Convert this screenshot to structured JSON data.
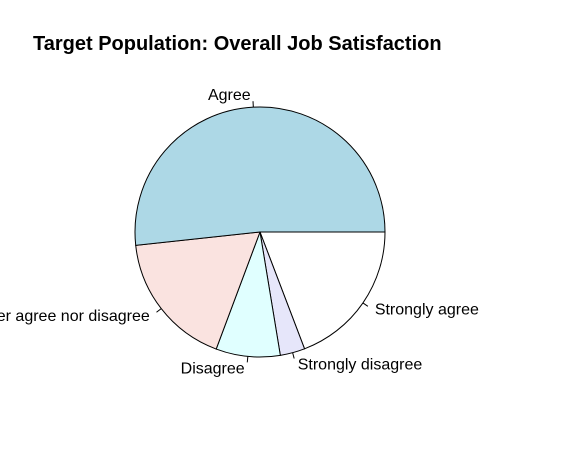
{
  "chart_data": {
    "type": "pie",
    "title": "Target Population: Overall Job Satisfaction",
    "slices": [
      {
        "label": "Strongly agree",
        "value": 19.2,
        "color": "#ffffff"
      },
      {
        "label": "Strongly disagree",
        "value": 3.2,
        "color": "#e6e6fa"
      },
      {
        "label": "Disagree",
        "value": 8.3,
        "color": "#e0ffff"
      },
      {
        "label": "Neither agree nor disagree",
        "value": 17.6,
        "color": "#fae3e0"
      },
      {
        "label": "Agree",
        "value": 51.7,
        "color": "#add8e6"
      }
    ],
    "start_angle_deg": 0,
    "direction": "clockwise"
  }
}
